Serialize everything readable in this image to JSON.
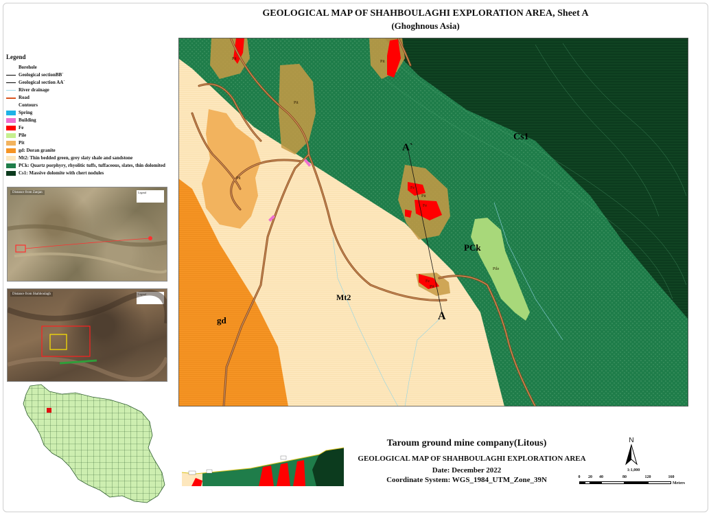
{
  "title": {
    "main": "GEOLOGICAL MAP OF SHAHBOULAGHI EXPLORATION AREA, Sheet A",
    "sub": "(Ghoghnous Asia)"
  },
  "legend": {
    "title": "Legend",
    "items": [
      {
        "label": "Borehole",
        "color": "#ffffff",
        "kind": "point"
      },
      {
        "label": "Geological sectionBB`",
        "color": "#000000",
        "kind": "line"
      },
      {
        "label": "Geological section AA`",
        "color": "#000000",
        "kind": "line"
      },
      {
        "label": "River drainage",
        "color": "#9fd8e8",
        "kind": "line"
      },
      {
        "label": "Road",
        "color": "#d9541e",
        "kind": "line"
      },
      {
        "label": "Contours",
        "color": "#ffffff",
        "kind": "line"
      },
      {
        "label": "Spring",
        "color": "#1fb2e6",
        "kind": "fill"
      },
      {
        "label": "Building",
        "color": "#ee6fd0",
        "kind": "fill"
      },
      {
        "label": "Fe",
        "color": "#ff0000",
        "kind": "fill"
      },
      {
        "label": "Pile",
        "color": "#c6ef8f",
        "kind": "fill"
      },
      {
        "label": "Pit",
        "color": "#f2b35e",
        "kind": "fill"
      },
      {
        "label": "gd: Doran granite",
        "color": "#f59424",
        "kind": "fill"
      },
      {
        "label": "Mt2: Thin bedded green, grey slaty shale and sandstone",
        "color": "#fde7bd",
        "kind": "fill"
      },
      {
        "label": "PCk: Quartz porphyry, rhyolitic tuffs, tuffaceous, slates, thin dolomited",
        "color": "#1f7d4a",
        "kind": "fill"
      },
      {
        "label": "Cs1: Massive dolomite with chert nodules",
        "color": "#0c3b1e",
        "kind": "fill"
      }
    ]
  },
  "insets": {
    "zanjan_label": "Distance from Zanjan",
    "shahboulagh_label": "Distance from Shahboulagh",
    "legend_word": "Legend"
  },
  "map": {
    "units": {
      "cs1": "Cs1",
      "pck": "PCk",
      "mt2": "Mt2",
      "gd": "gd"
    },
    "section_labels": {
      "a": "A",
      "a_prime": "A`"
    },
    "feature_labels": {
      "pit": "Pit",
      "pile": "Pile",
      "fe": "Fe"
    },
    "colors": {
      "cs1": "#0c3b1e",
      "pck": "#1f7d4a",
      "mt2": "#fde7bd",
      "gd": "#f59424",
      "pit": "#c79a45",
      "fe": "#ff0000",
      "pile": "#a8d87a",
      "road": "#8b4a1d"
    }
  },
  "bottom": {
    "company": "Taroum ground mine company(Litous)",
    "title": "GEOLOGICAL MAP OF SHAHBOULAGHI EXPLORATION AREA",
    "date": "Date: December 2022",
    "coordinate_system": "Coordinate System: WGS_1984_UTM_Zone_39N"
  },
  "north": "N",
  "scale": {
    "ratio": "1:1,000",
    "ticks": [
      "0",
      "20",
      "40",
      "80",
      "120",
      "160"
    ],
    "unit": "Meters"
  }
}
